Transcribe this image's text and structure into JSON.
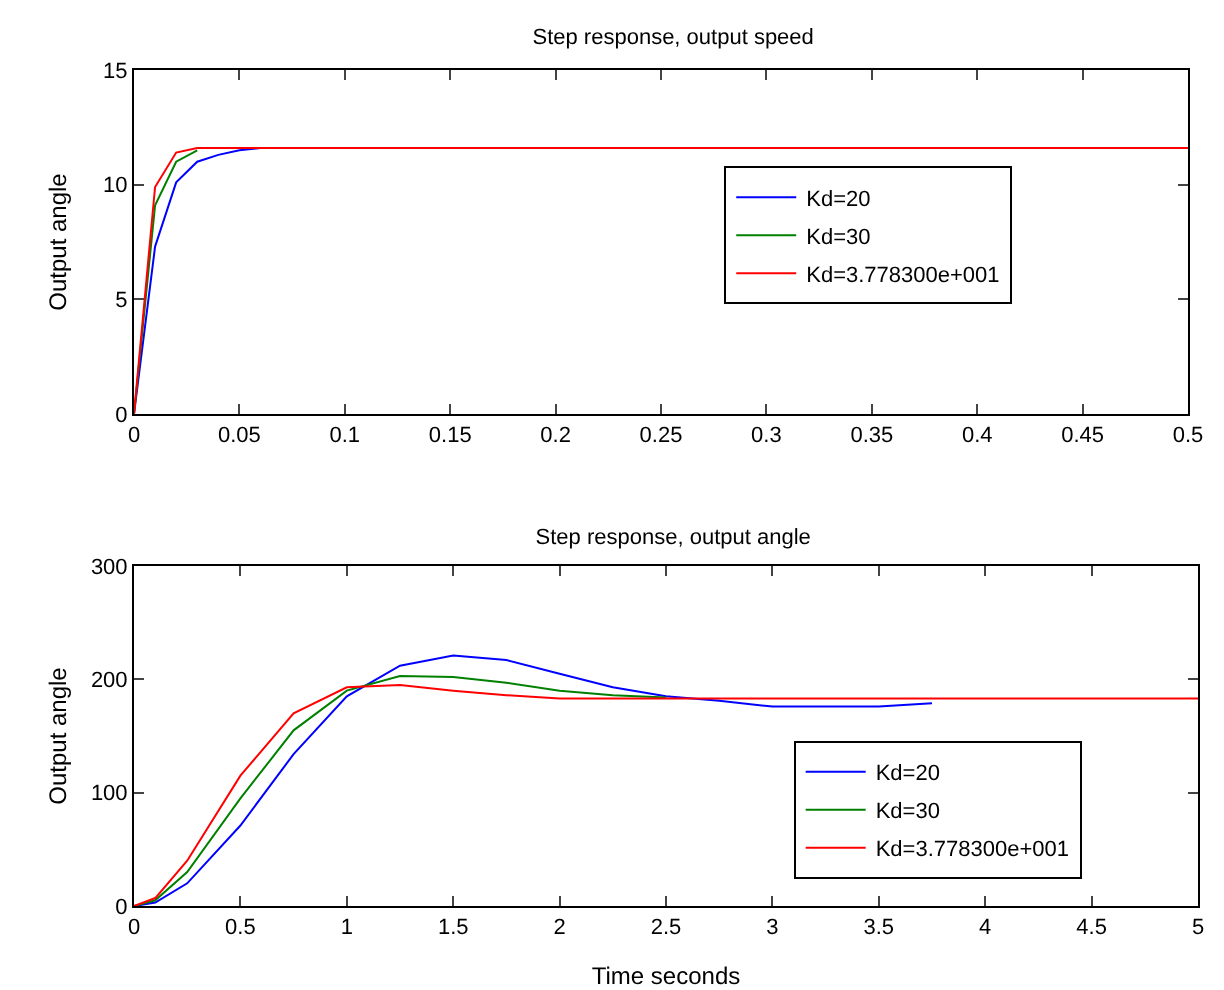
{
  "chart_data": [
    {
      "type": "line",
      "title": "Step response, output speed",
      "ylabel": "Output angle",
      "xlim": [
        0,
        0.5
      ],
      "ylim": [
        0,
        15
      ],
      "xticks": [
        0,
        0.05,
        0.1,
        0.15,
        0.2,
        0.25,
        0.3,
        0.35,
        0.4,
        0.45,
        0.5
      ],
      "yticks": [
        0,
        5,
        10,
        15
      ],
      "grid": false,
      "legend": "right",
      "marker": "none",
      "line_style": "solid",
      "x": [
        0,
        0.01,
        0.02,
        0.03,
        0.04,
        0.05,
        0.06,
        0.1,
        0.2,
        0.3,
        0.4,
        0.5
      ],
      "series": [
        {
          "name": "Kd=20",
          "color": "#0000ff",
          "x": [
            0,
            0.01,
            0.02,
            0.03,
            0.04,
            0.05,
            0.06
          ],
          "values": [
            0,
            7.3,
            10.1,
            11.0,
            11.3,
            11.5,
            11.6
          ]
        },
        {
          "name": "Kd=30",
          "color": "#008000",
          "x": [
            0,
            0.01,
            0.02,
            0.03
          ],
          "values": [
            0,
            9.1,
            11.0,
            11.5
          ]
        },
        {
          "name": "Kd=3.778300e+001",
          "color": "#ff0000",
          "values": [
            0,
            9.9,
            11.4,
            11.6,
            11.6,
            11.6,
            11.6,
            11.6,
            11.6,
            11.6,
            11.6,
            11.6
          ]
        }
      ]
    },
    {
      "type": "line",
      "title": "Step response, output angle",
      "xlabel": "Time seconds",
      "ylabel": "Output angle",
      "xlim": [
        0,
        5
      ],
      "ylim": [
        0,
        300
      ],
      "xticks": [
        0,
        0.5,
        1,
        1.5,
        2,
        2.5,
        3,
        3.5,
        4,
        4.5,
        5
      ],
      "yticks": [
        0,
        100,
        200,
        300
      ],
      "grid": false,
      "legend": "bottom right",
      "marker": "none",
      "line_style": "solid",
      "x": [
        0,
        0.1,
        0.25,
        0.5,
        0.75,
        1,
        1.25,
        1.5,
        1.75,
        2,
        2.25,
        2.5,
        2.75,
        3,
        3.5,
        4,
        5
      ],
      "series": [
        {
          "name": "Kd=20",
          "color": "#0000ff",
          "x": [
            0,
            0.1,
            0.25,
            0.5,
            0.75,
            1,
            1.25,
            1.5,
            1.75,
            2,
            2.25,
            2.5,
            2.75,
            3,
            3.5,
            3.75
          ],
          "values": [
            0,
            3,
            20,
            71,
            134,
            185,
            212,
            221,
            217,
            205,
            193,
            185,
            181,
            176,
            176,
            179
          ]
        },
        {
          "name": "Kd=30",
          "color": "#008000",
          "x": [
            0,
            0.1,
            0.25,
            0.5,
            0.75,
            1,
            1.25,
            1.5,
            1.75,
            2,
            2.25,
            2.5
          ],
          "values": [
            0,
            5,
            30,
            95,
            155,
            190,
            203,
            202,
            197,
            190,
            186,
            184
          ]
        },
        {
          "name": "Kd=3.778300e+001",
          "color": "#ff0000",
          "values": [
            0,
            7,
            40,
            115,
            170,
            193,
            195,
            190,
            186,
            183,
            183,
            183,
            183,
            183,
            183,
            183,
            183
          ]
        }
      ]
    }
  ]
}
